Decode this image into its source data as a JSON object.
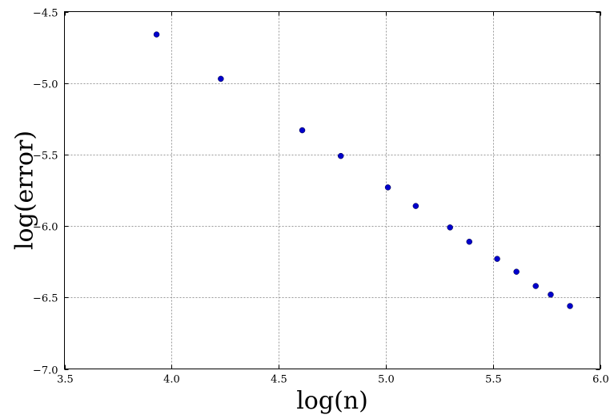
{
  "chart_data": {
    "type": "scatter",
    "title": "",
    "xlabel": "log(n)",
    "ylabel": "log(error)",
    "xlim": [
      3.5,
      6.0
    ],
    "ylim": [
      -7.0,
      -4.5
    ],
    "grid": true,
    "marker_color": "#0000cc",
    "x_ticks": [
      {
        "value": 3.5,
        "label": "3.5"
      },
      {
        "value": 4.0,
        "label": "4.0"
      },
      {
        "value": 4.5,
        "label": "4.5"
      },
      {
        "value": 5.0,
        "label": "5.0"
      },
      {
        "value": 5.5,
        "label": "5.5"
      },
      {
        "value": 6.0,
        "label": "6.0"
      }
    ],
    "y_ticks": [
      {
        "value": -7.0,
        "label": "−7.0"
      },
      {
        "value": -6.5,
        "label": "−6.5"
      },
      {
        "value": -6.0,
        "label": "−6.0"
      },
      {
        "value": -5.5,
        "label": "−5.5"
      },
      {
        "value": -5.0,
        "label": "−5.0"
      },
      {
        "value": -4.5,
        "label": "−4.5"
      }
    ],
    "series": [
      {
        "x": [
          3.93,
          4.23,
          4.61,
          4.79,
          5.01,
          5.14,
          5.3,
          5.39,
          5.52,
          5.61,
          5.7,
          5.77,
          5.86
        ],
        "y": [
          -4.66,
          -4.97,
          -5.33,
          -5.51,
          -5.73,
          -5.86,
          -6.01,
          -6.11,
          -6.23,
          -6.32,
          -6.42,
          -6.48,
          -6.56
        ]
      }
    ]
  }
}
